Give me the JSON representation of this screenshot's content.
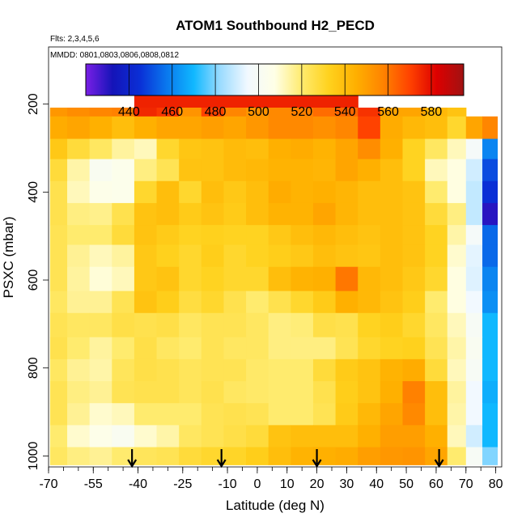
{
  "chart_data": {
    "type": "heatmap",
    "title": "ATOM1 Southbound H2_PECD",
    "subtitle_flights": "Flts: 2,3,4,5,6",
    "subtitle_dates": "MMDD: 0801,0803,0806,0808,0812",
    "xlabel": "Latitude (deg N)",
    "ylabel": "PSXC (mbar)",
    "xlim": [
      -70,
      82
    ],
    "ylim": [
      1025,
      70
    ],
    "y_reversed": true,
    "x_ticks": [
      -70,
      -55,
      -40,
      -25,
      -10,
      0,
      10,
      20,
      30,
      40,
      50,
      60,
      70,
      80
    ],
    "x_tick_labels": [
      "-70",
      "-55",
      "-40",
      "-25",
      "-10",
      "0",
      "10",
      "20",
      "30",
      "40",
      "50",
      "60",
      "70",
      "80"
    ],
    "x_minor_step": 5,
    "y_ticks": [
      200,
      400,
      600,
      800,
      1000
    ],
    "y_tick_labels": [
      "200",
      "400",
      "600",
      "800",
      "1000"
    ],
    "colorbar": {
      "range": [
        420,
        595
      ],
      "ticks": [
        440,
        460,
        480,
        500,
        520,
        540,
        560,
        580
      ],
      "tick_labels": [
        "440",
        "460",
        "480",
        "500",
        "520",
        "540",
        "560",
        "580"
      ],
      "colors": [
        "#7a1fe6",
        "#1414b8",
        "#0a2fd6",
        "#0a78ee",
        "#10b8ff",
        "#9ddcff",
        "#f2f9ff",
        "#ffffe6",
        "#ffeb6e",
        "#ffd21e",
        "#ffb000",
        "#ff8400",
        "#ff4200",
        "#dd0000",
        "#a01212"
      ]
    },
    "layer_edges": [
      170,
      208,
      228,
      279,
      325,
      375,
      425,
      475,
      520,
      570,
      625,
      675,
      730,
      780,
      830,
      880,
      930,
      980,
      1020
    ],
    "lat_nodes": [
      -67.5,
      -60,
      -52.5,
      -45,
      -37.5,
      -30,
      -22.5,
      -15,
      -7.5,
      0,
      7.5,
      15,
      22.5,
      30,
      37.5,
      45,
      52.5,
      60,
      67.5,
      72.5,
      78.5
    ],
    "grid_values": [
      [
        null,
        null,
        null,
        null,
        576,
        576,
        576,
        576,
        576,
        576,
        576,
        576,
        576,
        576,
        null,
        null,
        null,
        null,
        null,
        null,
        null
      ],
      [
        552,
        555,
        557,
        558,
        575,
        572,
        553,
        570,
        557,
        553,
        556,
        558,
        562,
        563,
        573,
        548,
        548,
        542,
        538,
        null,
        null
      ],
      [
        546,
        548,
        545,
        540,
        545,
        548,
        548,
        550,
        548,
        552,
        556,
        556,
        554,
        557,
        570,
        546,
        542,
        540,
        530,
        548,
        557
      ],
      [
        536,
        528,
        522,
        515,
        512,
        530,
        537,
        538,
        541,
        540,
        545,
        546,
        544,
        548,
        555,
        545,
        532,
        522,
        512,
        498,
        460
      ],
      [
        528,
        514,
        502,
        505,
        518,
        524,
        538,
        538,
        541,
        542,
        544,
        544,
        543,
        548,
        545,
        540,
        532,
        512,
        508,
        490,
        450
      ],
      [
        525,
        512,
        506,
        505,
        530,
        540,
        530,
        540,
        536,
        540,
        546,
        544,
        545,
        543,
        540,
        540,
        538,
        520,
        508,
        488,
        445
      ],
      [
        525,
        518,
        517,
        525,
        538,
        540,
        535,
        538,
        535,
        540,
        544,
        544,
        548,
        543,
        540,
        540,
        538,
        528,
        518,
        488,
        430
      ],
      [
        524,
        520,
        520,
        528,
        538,
        535,
        532,
        533,
        532,
        532,
        536,
        540,
        542,
        540,
        538,
        540,
        538,
        532,
        514,
        498,
        455
      ],
      [
        524,
        516,
        512,
        515,
        536,
        533,
        530,
        534,
        530,
        532,
        534,
        536,
        540,
        538,
        537,
        540,
        538,
        532,
        510,
        493,
        455
      ],
      [
        524,
        515,
        509,
        512,
        536,
        538,
        530,
        532,
        530,
        530,
        540,
        544,
        545,
        560,
        542,
        540,
        536,
        530,
        508,
        492,
        460
      ],
      [
        522,
        516,
        516,
        524,
        538,
        534,
        527,
        530,
        525,
        520,
        525,
        530,
        535,
        545,
        542,
        538,
        534,
        520,
        508,
        495,
        462
      ],
      [
        524,
        522,
        522,
        526,
        525,
        526,
        522,
        524,
        524,
        522,
        518,
        519,
        526,
        525,
        532,
        534,
        530,
        522,
        512,
        500,
        470
      ],
      [
        525,
        520,
        515,
        520,
        526,
        522,
        520,
        524,
        522,
        522,
        518,
        518,
        518,
        524,
        530,
        532,
        533,
        524,
        514,
        502,
        470
      ],
      [
        522,
        516,
        514,
        523,
        526,
        525,
        523,
        524,
        524,
        521,
        520,
        520,
        528,
        535,
        538,
        544,
        546,
        528,
        512,
        500,
        470
      ],
      [
        524,
        518,
        516,
        524,
        525,
        525,
        523,
        525,
        522,
        521,
        520,
        520,
        525,
        534,
        538,
        545,
        558,
        540,
        515,
        495,
        468
      ],
      [
        524,
        516,
        510,
        512,
        520,
        520,
        520,
        524,
        525,
        524,
        520,
        520,
        524,
        535,
        542,
        548,
        556,
        540,
        514,
        495,
        470
      ],
      [
        520,
        510,
        506,
        502,
        510,
        514,
        522,
        524,
        526,
        528,
        538,
        540,
        540,
        540,
        545,
        550,
        550,
        545,
        512,
        490,
        470
      ],
      [
        522,
        518,
        516,
        520,
        523,
        524,
        528,
        530,
        531,
        534,
        540,
        544,
        545,
        546,
        550,
        552,
        553,
        548,
        520,
        500,
        480
      ]
    ],
    "flight_marker_latitudes": [
      -42,
      -12,
      20,
      61
    ]
  }
}
